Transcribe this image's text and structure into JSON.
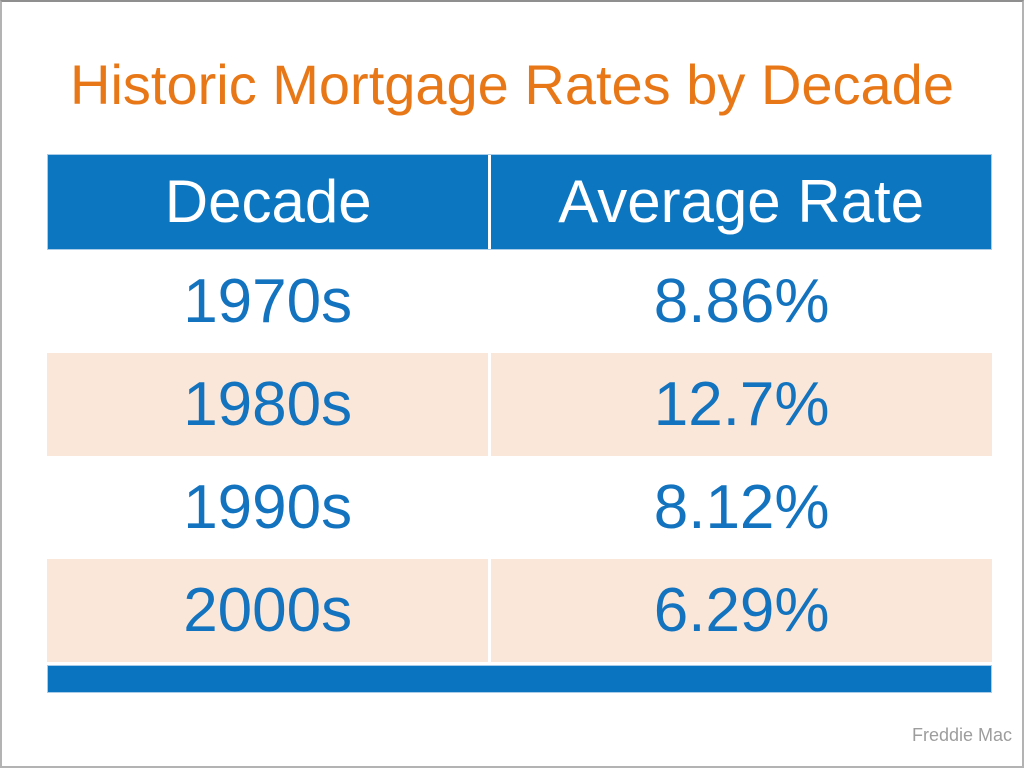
{
  "slide": {
    "title": "Historic Mortgage Rates by Decade",
    "source": "Freddie Mac"
  },
  "table": {
    "columns": [
      "Decade",
      "Average Rate"
    ],
    "rows": [
      {
        "decade": "1970s",
        "rate": "8.86%"
      },
      {
        "decade": "1980s",
        "rate": "12.7%"
      },
      {
        "decade": "1990s",
        "rate": "8.12%"
      },
      {
        "decade": "2000s",
        "rate": "6.29%"
      }
    ]
  },
  "colors": {
    "title_orange": "#e87817",
    "header_blue": "#0c76c1",
    "footer_blue": "#0b74c0",
    "data_text_blue": "#1373be",
    "row_peach": "#fbe7d9",
    "source_gray": "#9d9d9d",
    "frame_gray": "#b3b3b3"
  },
  "chart_data": {
    "type": "table",
    "title": "Historic Mortgage Rates by Decade",
    "columns": [
      "Decade",
      "Average Rate"
    ],
    "categories": [
      "1970s",
      "1980s",
      "1990s",
      "2000s"
    ],
    "values": [
      8.86,
      12.7,
      8.12,
      6.29
    ],
    "unit": "%",
    "source": "Freddie Mac"
  }
}
